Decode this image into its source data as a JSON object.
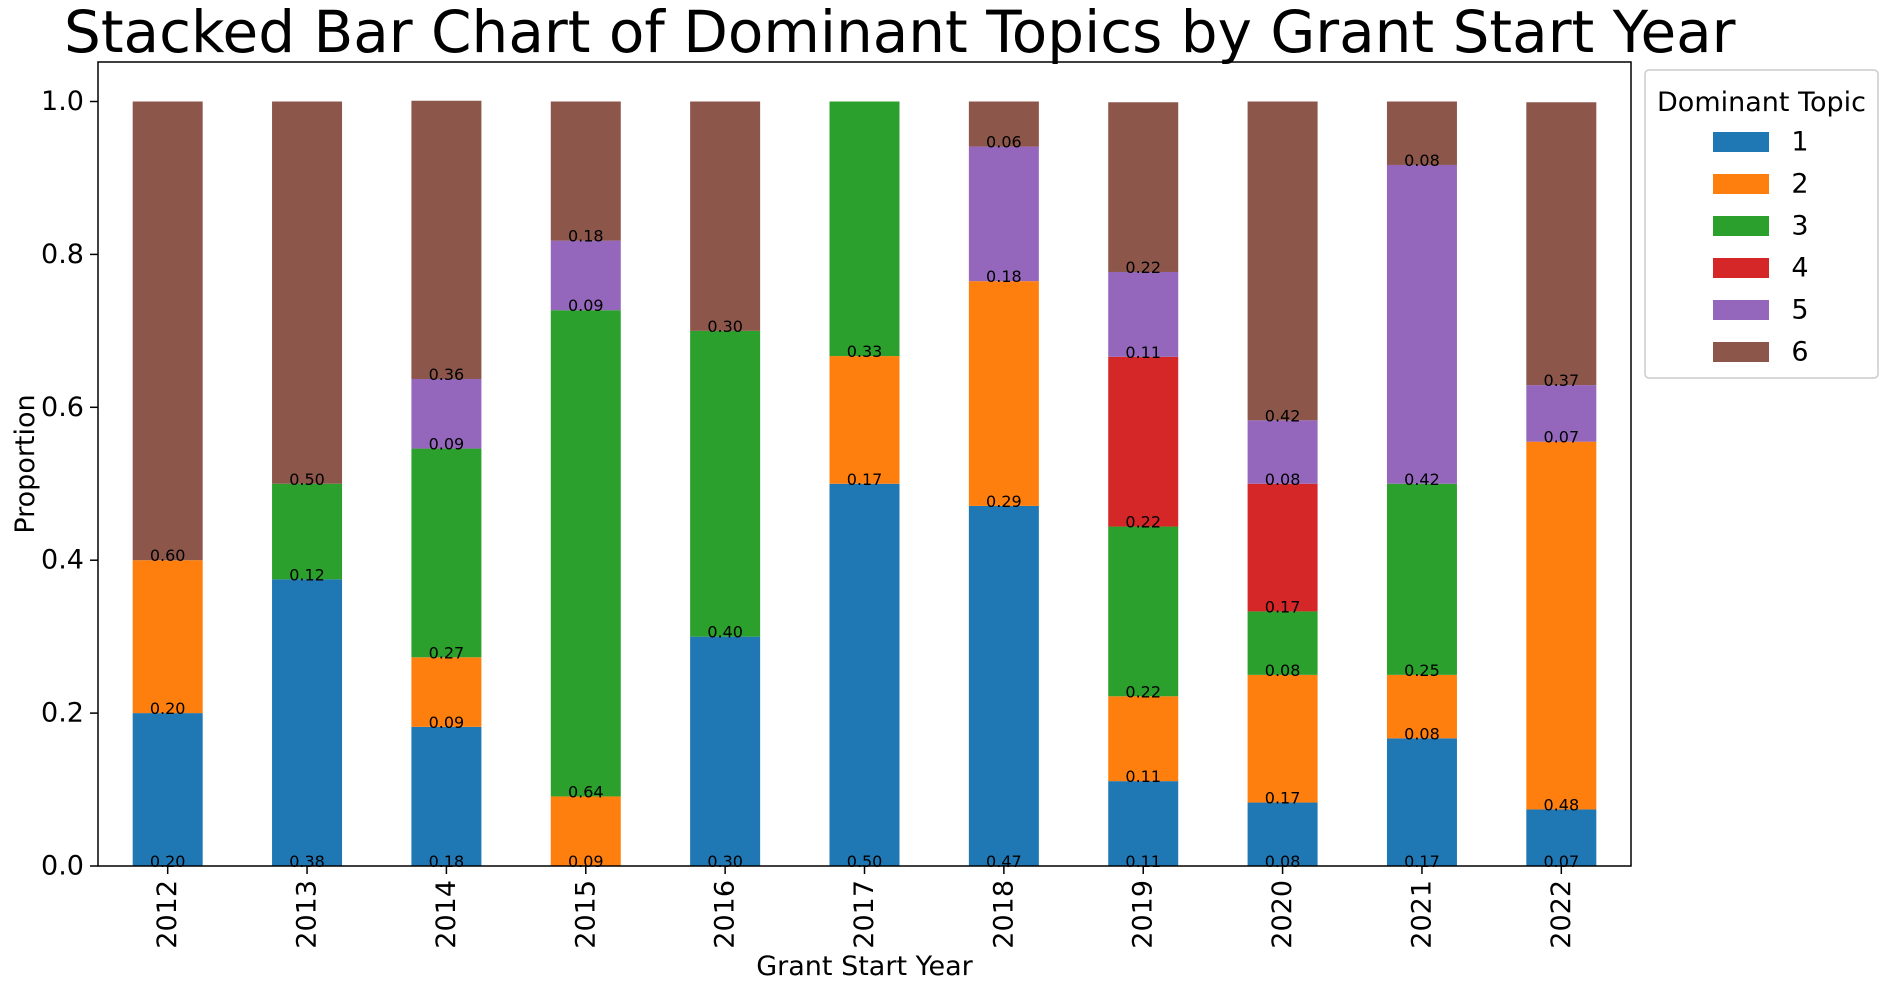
{
  "chart_data": {
    "type": "bar",
    "stacked": true,
    "title": "Stacked Bar Chart of Dominant Topics by Grant Start Year",
    "xlabel": "Grant Start Year",
    "ylabel": "Proportion",
    "ylim": [
      0,
      1.05
    ],
    "yticks": [
      "0.0",
      "0.2",
      "0.4",
      "0.6",
      "0.8",
      "1.0"
    ],
    "grid": false,
    "legend": {
      "title": "Dominant Topic",
      "placement": "outside-top-right"
    },
    "categories": [
      "2012",
      "2013",
      "2014",
      "2015",
      "2016",
      "2017",
      "2018",
      "2019",
      "2020",
      "2021",
      "2022"
    ],
    "series": [
      {
        "name": "1",
        "color": "#1f77b4",
        "values": [
          0.2,
          0.375,
          0.182,
          0.0,
          0.3,
          0.5,
          0.471,
          0.111,
          0.083,
          0.167,
          0.074
        ]
      },
      {
        "name": "2",
        "color": "#ff7f0e",
        "values": [
          0.2,
          0.0,
          0.091,
          0.091,
          0.0,
          0.167,
          0.294,
          0.111,
          0.167,
          0.083,
          0.481
        ]
      },
      {
        "name": "3",
        "color": "#2ca02c",
        "values": [
          0.0,
          0.125,
          0.273,
          0.636,
          0.4,
          0.333,
          0.0,
          0.222,
          0.083,
          0.25,
          0.0
        ]
      },
      {
        "name": "4",
        "color": "#d62728",
        "values": [
          0.0,
          0.0,
          0.0,
          0.0,
          0.0,
          0.0,
          0.0,
          0.222,
          0.167,
          0.0,
          0.0
        ]
      },
      {
        "name": "5",
        "color": "#9467bd",
        "values": [
          0.0,
          0.0,
          0.091,
          0.091,
          0.0,
          0.0,
          0.176,
          0.111,
          0.083,
          0.417,
          0.074
        ]
      },
      {
        "name": "6",
        "color": "#8c564b",
        "values": [
          0.6,
          0.5,
          0.364,
          0.182,
          0.3,
          0.0,
          0.059,
          0.222,
          0.417,
          0.083,
          0.37
        ]
      }
    ],
    "data_labels": [
      [
        "0.20",
        "0.20",
        null,
        null,
        null,
        "0.60"
      ],
      [
        "0.38",
        null,
        "0.12",
        null,
        null,
        "0.50"
      ],
      [
        "0.18",
        "0.09",
        "0.27",
        null,
        "0.09",
        "0.36"
      ],
      [
        null,
        "0.09",
        "0.64",
        null,
        "0.09",
        "0.18"
      ],
      [
        "0.30",
        null,
        "0.40",
        null,
        null,
        "0.30"
      ],
      [
        "0.50",
        "0.17",
        "0.33",
        null,
        null,
        null
      ],
      [
        "0.47",
        "0.29",
        null,
        null,
        "0.18",
        "0.06"
      ],
      [
        "0.11",
        "0.11",
        "0.22",
        "0.22",
        "0.11",
        "0.22"
      ],
      [
        "0.08",
        "0.17",
        "0.08",
        "0.17",
        "0.08",
        "0.42"
      ],
      [
        "0.17",
        "0.08",
        "0.25",
        null,
        "0.42",
        "0.08"
      ],
      [
        "0.07",
        "0.48",
        null,
        null,
        "0.07",
        "0.37"
      ]
    ]
  }
}
